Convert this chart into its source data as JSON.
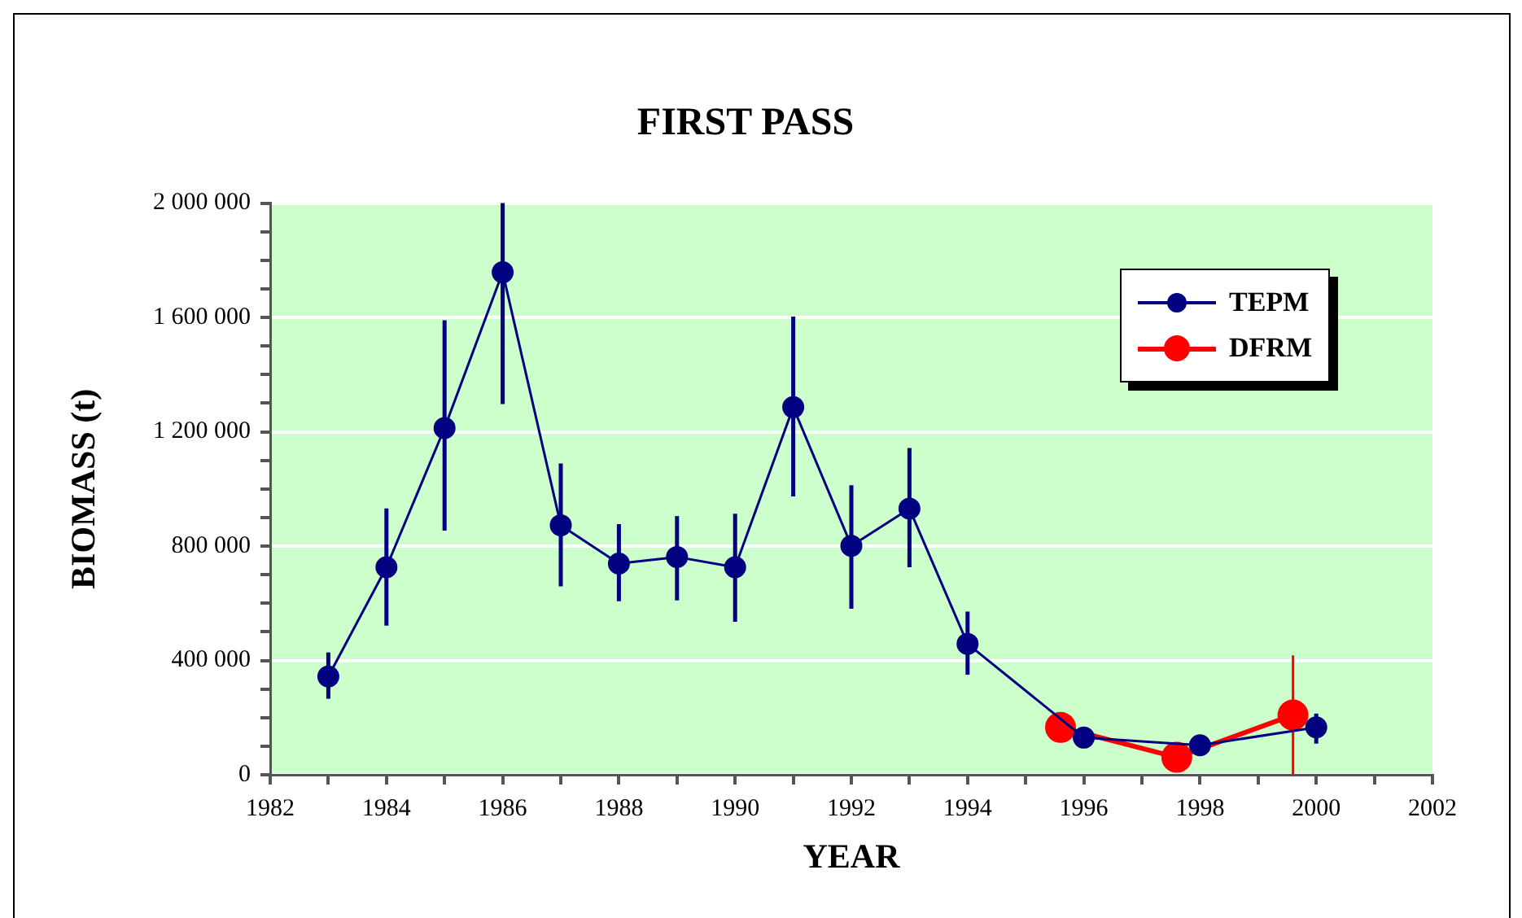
{
  "chart_data": {
    "type": "line",
    "title": "FIRST PASS",
    "xlabel": "YEAR",
    "ylabel": "BIOMASS (t)",
    "xlim": [
      1982,
      2002
    ],
    "xticks": [
      1982,
      {
        "value": 1983,
        "label": null
      },
      1984,
      {
        "value": 1985,
        "label": null
      },
      1986,
      {
        "value": 1987,
        "label": null
      },
      1988,
      {
        "value": 1989,
        "label": null
      },
      1990,
      {
        "value": 1991,
        "label": null
      },
      1992,
      {
        "value": 1993,
        "label": null
      },
      1994,
      {
        "value": 1995,
        "label": null
      },
      1996,
      {
        "value": 1997,
        "label": null
      },
      1998,
      {
        "value": 1999,
        "label": null
      },
      2000,
      {
        "value": 2001,
        "label": null
      },
      2002
    ],
    "ylim": [
      0,
      2000000
    ],
    "yticks": [
      0,
      {
        "value": 100000,
        "label": null
      },
      {
        "value": 200000,
        "label": null
      },
      {
        "value": 300000,
        "label": null
      },
      {
        "value": 400000,
        "label": "400 000"
      },
      {
        "value": 500000,
        "label": null
      },
      {
        "value": 600000,
        "label": null
      },
      {
        "value": 700000,
        "label": null
      },
      {
        "value": 800000,
        "label": "800 000"
      },
      {
        "value": 900000,
        "label": null
      },
      {
        "value": 1000000,
        "label": null
      },
      {
        "value": 1100000,
        "label": null
      },
      {
        "value": 1200000,
        "label": "1 200 000"
      },
      {
        "value": 1300000,
        "label": null
      },
      {
        "value": 1400000,
        "label": null
      },
      {
        "value": 1500000,
        "label": null
      },
      {
        "value": 1600000,
        "label": "1 600 000"
      },
      {
        "value": 1700000,
        "label": null
      },
      {
        "value": 1800000,
        "label": null
      },
      {
        "value": 1900000,
        "label": null
      },
      {
        "value": 2000000,
        "label": "2 000 000"
      }
    ],
    "grid": "y",
    "legend": "top right",
    "marker": "circle",
    "line_style": "solid",
    "series": [
      {
        "name": "TEPM",
        "color": "#000080",
        "x": [
          1983,
          1984,
          1985,
          1986,
          1987,
          1988,
          1989,
          1990,
          1991,
          1992,
          1993,
          1994,
          1996,
          1998,
          2000
        ],
        "values": [
          344000,
          726000,
          1213000,
          1758000,
          873000,
          739000,
          762000,
          726000,
          1286000,
          801000,
          931000,
          458000,
          130000,
          103000,
          166000
        ],
        "errors": [
          [
            266000,
            428000
          ],
          [
            522000,
            932000
          ],
          [
            854000,
            1590000
          ],
          [
            1297000,
            2000000
          ],
          [
            659000,
            1089000
          ],
          [
            607000,
            877000
          ],
          [
            610000,
            905000
          ],
          [
            535000,
            913000
          ],
          [
            974000,
            1603000
          ],
          [
            581000,
            1013000
          ],
          [
            726000,
            1143000
          ],
          [
            350000,
            571000
          ],
          null,
          null,
          [
            109000,
            214000
          ]
        ]
      },
      {
        "name": "DFRM",
        "color": "#ff0000",
        "x": [
          1995.6,
          1997.6,
          1999.6
        ],
        "values": [
          166000,
          61000,
          209000
        ],
        "errors": [
          null,
          null,
          [
            0,
            418000
          ]
        ]
      }
    ]
  }
}
